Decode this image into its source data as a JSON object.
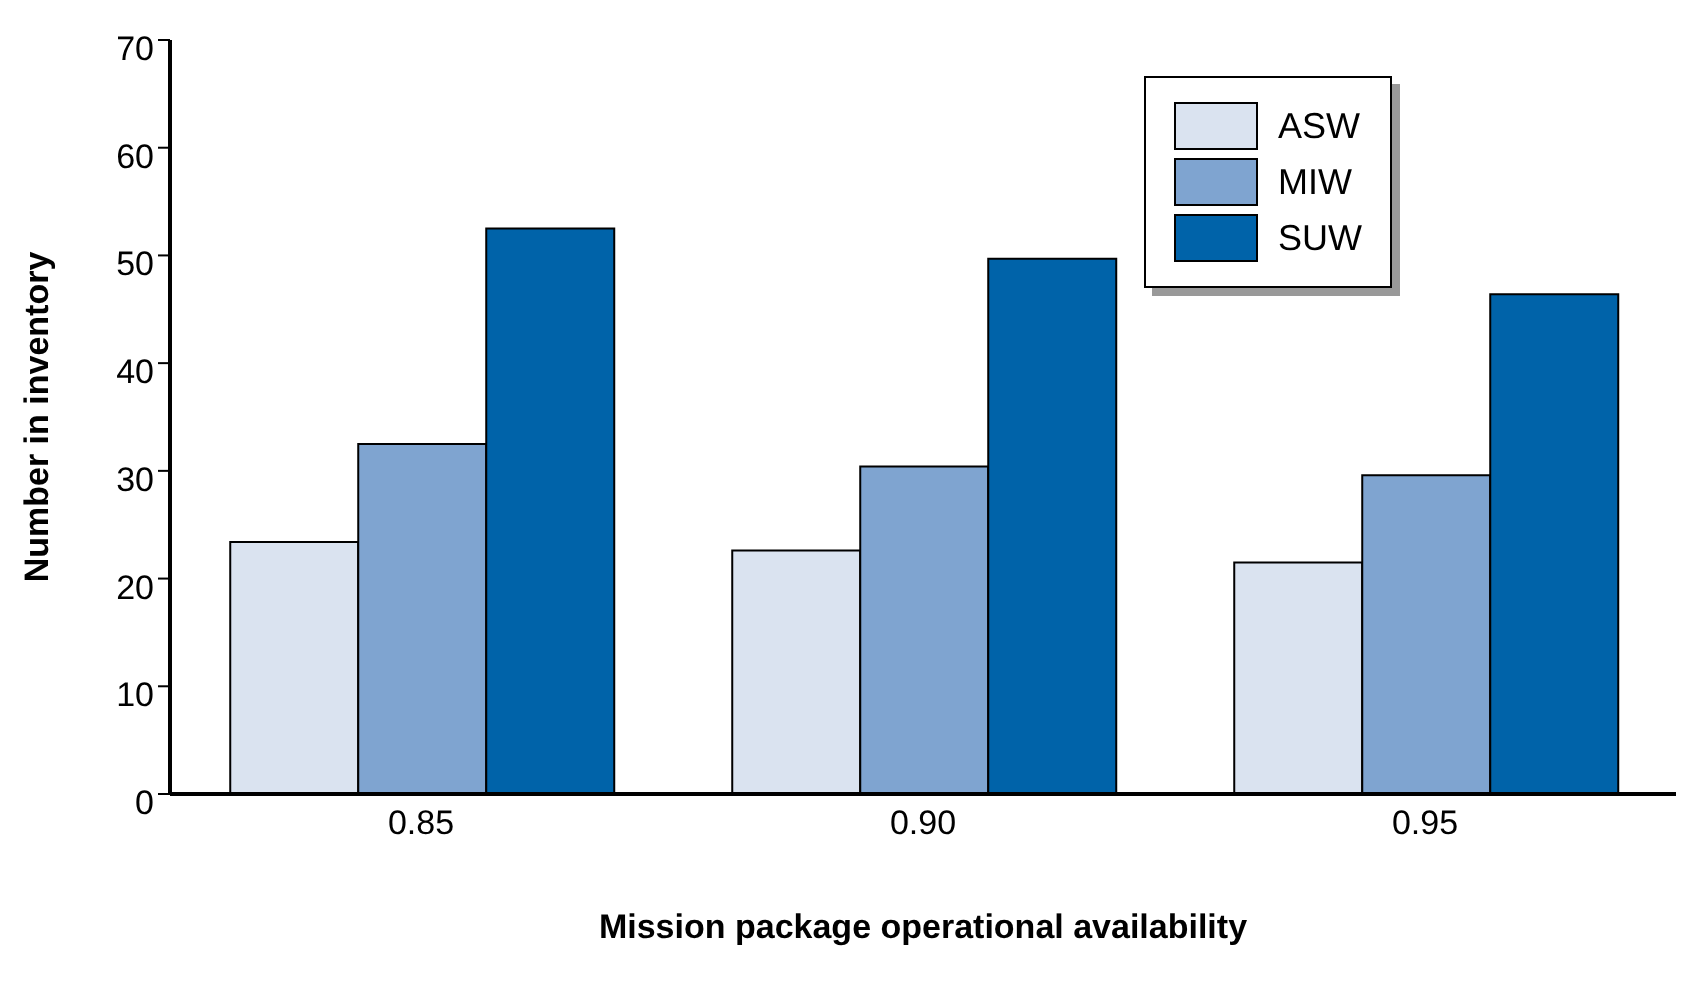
{
  "chart_data": {
    "type": "bar",
    "xlabel": "Mission package operational availability",
    "ylabel": "Number in inventory",
    "categories": [
      "0.85",
      "0.90",
      "0.95"
    ],
    "series": [
      {
        "name": "ASW",
        "color": "#dae3f0",
        "values": [
          23.4,
          22.6,
          21.5
        ]
      },
      {
        "name": "MIW",
        "color": "#7fa4d0",
        "values": [
          32.5,
          30.4,
          29.6
        ]
      },
      {
        "name": "SUW",
        "color": "#0063a9",
        "values": [
          52.5,
          49.7,
          46.4
        ]
      }
    ],
    "ylim": [
      0,
      70
    ],
    "yticks": [
      0,
      10,
      20,
      30,
      40,
      50,
      60,
      70
    ],
    "grid": false,
    "legend": "top right"
  }
}
